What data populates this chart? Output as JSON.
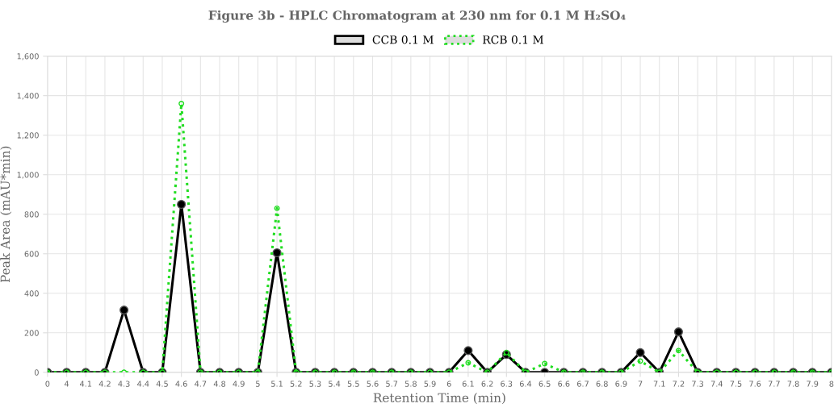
{
  "chart_data": {
    "type": "line",
    "title": "Figure 3b - HPLC Chromatogram at 230 nm for 0.1 M H₂SO₄",
    "xlabel": "Retention Time (min)",
    "ylabel": "Peak Area (mAU*min)",
    "categories": [
      "0",
      "4",
      "4.1",
      "4.2",
      "4.3",
      "4.4",
      "4.5",
      "4.6",
      "4.7",
      "4.8",
      "4.9",
      "5",
      "5.1",
      "5.2",
      "5.3",
      "5.4",
      "5.5",
      "5.6",
      "5.7",
      "5.8",
      "5.9",
      "6",
      "6.1",
      "6.2",
      "6.3",
      "6.4",
      "6.5",
      "6.6",
      "6.7",
      "6.8",
      "6.9",
      "7",
      "7.1",
      "7.2",
      "7.3",
      "7.4",
      "7.5",
      "7.6",
      "7.7",
      "7.8",
      "7.9",
      "8"
    ],
    "series": [
      {
        "name": "CCB 0.1 M",
        "color": "#000000",
        "line_style": "solid",
        "values": [
          0,
          0,
          0,
          0,
          315,
          0,
          0,
          850,
          0,
          0,
          0,
          0,
          605,
          0,
          0,
          0,
          0,
          0,
          0,
          0,
          0,
          0,
          110,
          0,
          90,
          0,
          0,
          0,
          0,
          0,
          0,
          100,
          0,
          205,
          0,
          0,
          0,
          0,
          0,
          0,
          0,
          0
        ]
      },
      {
        "name": "RCB 0.1 M",
        "color": "#22dd22",
        "line_style": "dotted",
        "values": [
          0,
          0,
          0,
          0,
          0,
          0,
          0,
          1360,
          0,
          0,
          0,
          0,
          830,
          0,
          0,
          0,
          0,
          0,
          0,
          0,
          0,
          0,
          48,
          0,
          100,
          0,
          44,
          0,
          0,
          0,
          0,
          57,
          0,
          110,
          0,
          0,
          0,
          0,
          0,
          0,
          0,
          0
        ]
      }
    ],
    "ylim": [
      0,
      1600
    ],
    "yticks": [
      0,
      200,
      400,
      600,
      800,
      {
        "value": 1000,
        "label": "1,000"
      },
      {
        "value": 1200,
        "label": "1,200"
      },
      {
        "value": 1400,
        "label": "1,400"
      },
      {
        "value": 1600,
        "label": "1,600"
      }
    ],
    "grid": true,
    "legend": "top",
    "marker": "circle"
  }
}
